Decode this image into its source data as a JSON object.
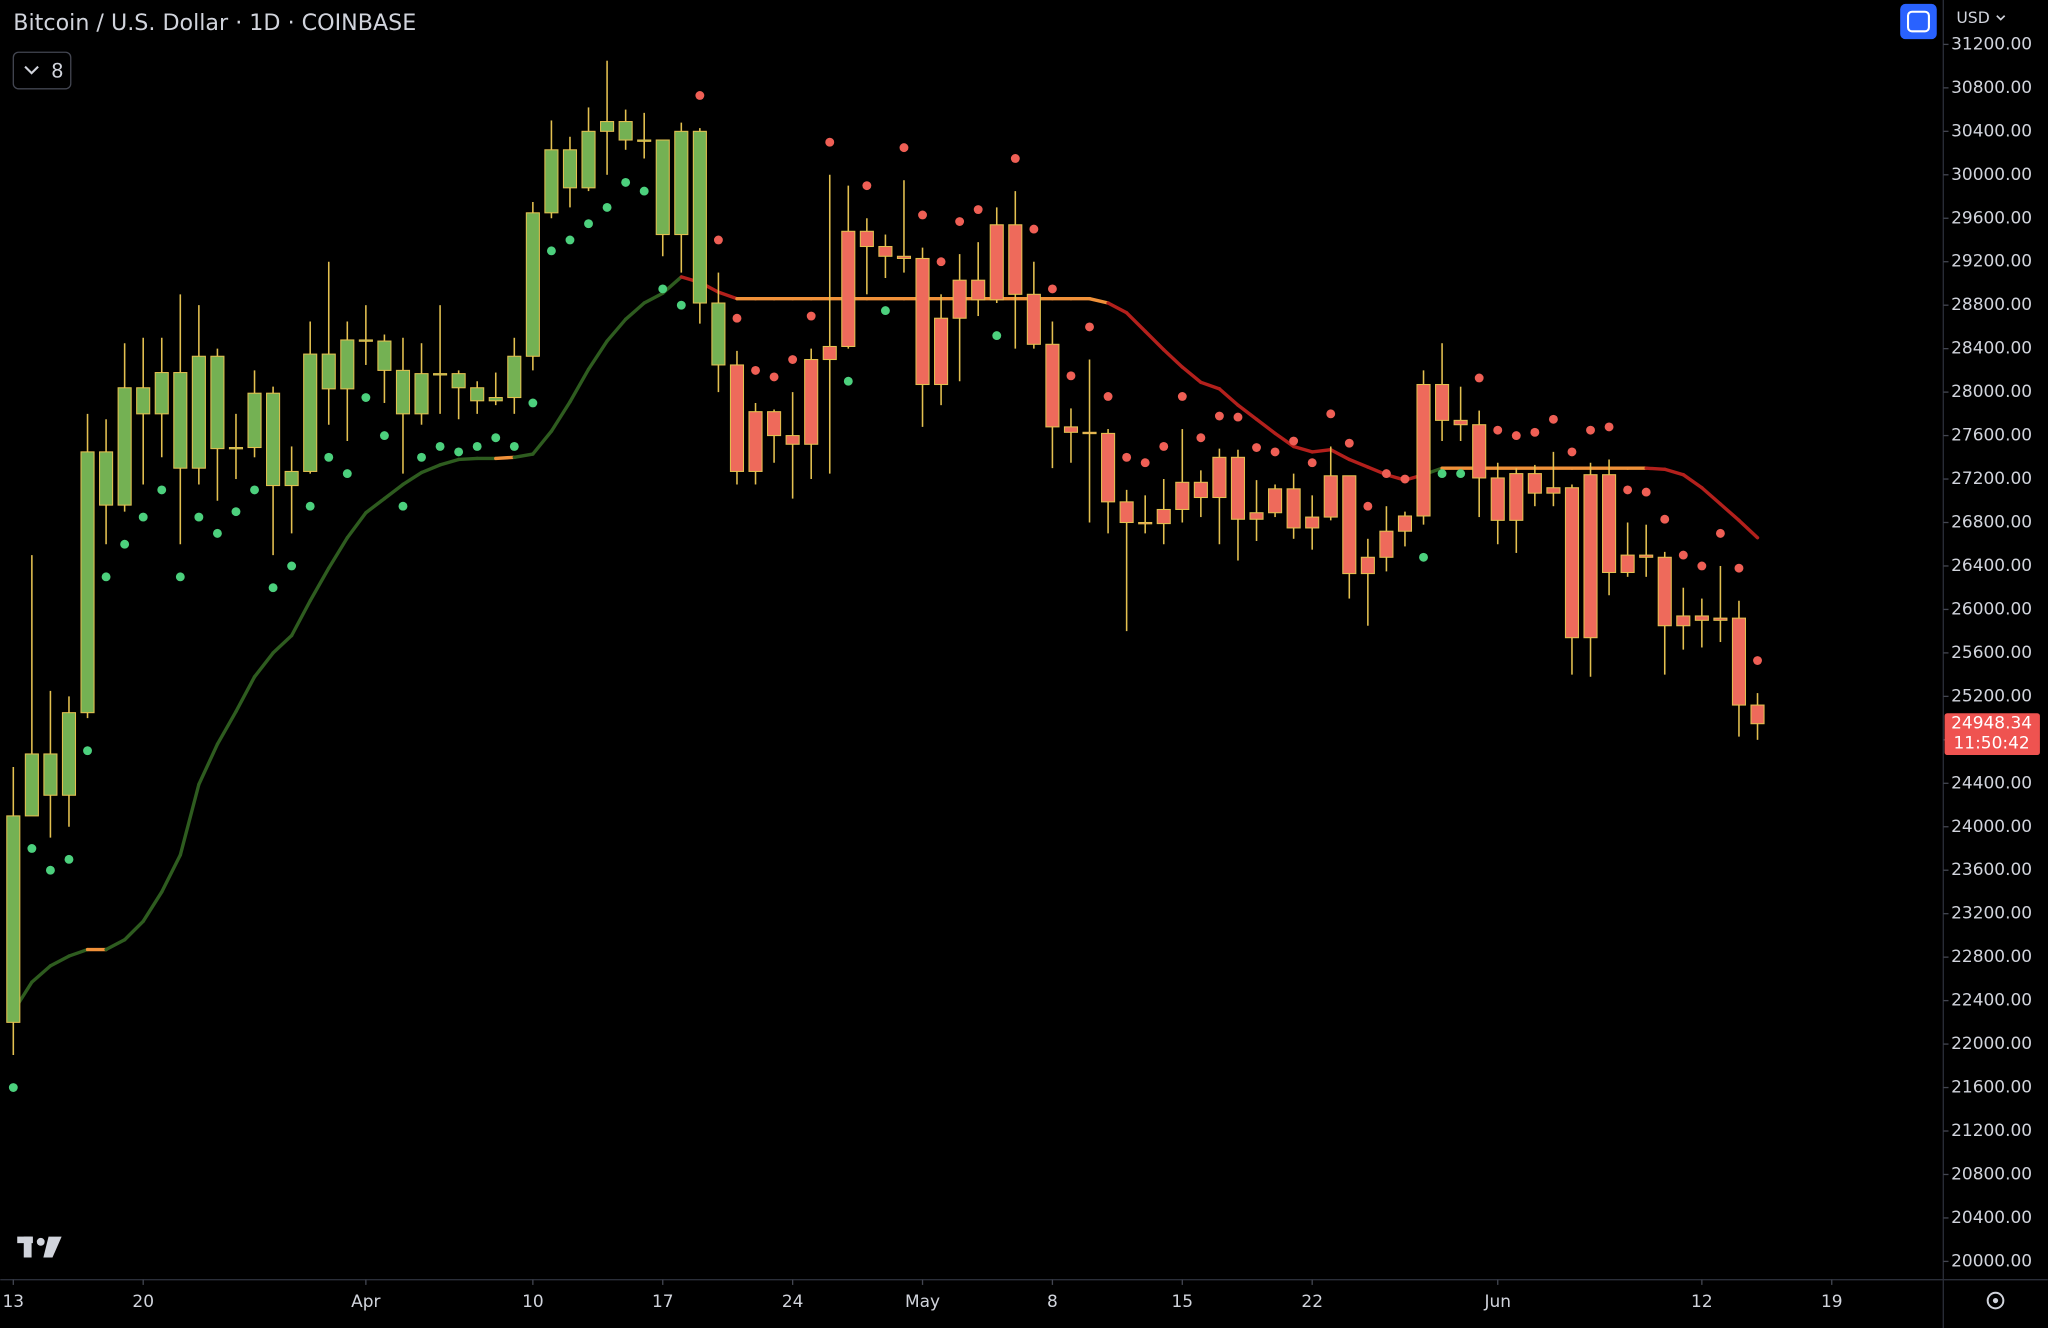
{
  "chart_data": {
    "type": "candlestick",
    "title": "Bitcoin / U.S. Dollar · 1D · COINBASE",
    "currency": "USD",
    "indicator_count": "8",
    "x": [
      "Mar 13",
      "Mar 14",
      "Mar 15",
      "Mar 16",
      "Mar 17",
      "Mar 18",
      "Mar 19",
      "Mar 20",
      "Mar 21",
      "Mar 22",
      "Mar 23",
      "Mar 24",
      "Mar 25",
      "Mar 26",
      "Mar 27",
      "Mar 28",
      "Mar 29",
      "Mar 30",
      "Mar 31",
      "Apr 1",
      "Apr 2",
      "Apr 3",
      "Apr 4",
      "Apr 5",
      "Apr 6",
      "Apr 7",
      "Apr 8",
      "Apr 9",
      "Apr 10",
      "Apr 11",
      "Apr 12",
      "Apr 13",
      "Apr 14",
      "Apr 15",
      "Apr 16",
      "Apr 17",
      "Apr 18",
      "Apr 19",
      "Apr 20",
      "Apr 21",
      "Apr 22",
      "Apr 23",
      "Apr 24",
      "Apr 25",
      "Apr 26",
      "Apr 27",
      "Apr 28",
      "Apr 29",
      "Apr 30",
      "May 1",
      "May 2",
      "May 3",
      "May 4",
      "May 5",
      "May 6",
      "May 7",
      "May 8",
      "May 9",
      "May 10",
      "May 11",
      "May 12",
      "May 13",
      "May 14",
      "May 15",
      "May 16",
      "May 17",
      "May 18",
      "May 19",
      "May 20",
      "May 21",
      "May 22",
      "May 23",
      "May 24",
      "May 25",
      "May 26",
      "May 27",
      "May 28",
      "May 29",
      "May 30",
      "May 31",
      "Jun 1",
      "Jun 2",
      "Jun 3",
      "Jun 4",
      "Jun 5",
      "Jun 6",
      "Jun 7",
      "Jun 8",
      "Jun 9",
      "Jun 10",
      "Jun 11",
      "Jun 12",
      "Jun 13",
      "Jun 14",
      "Jun 15"
    ],
    "open": [
      22200,
      24100,
      24670,
      24290,
      25050,
      27450,
      26960,
      28040,
      27800,
      28180,
      27300,
      28330,
      27480,
      27490,
      27990,
      27140,
      27270,
      28350,
      28030,
      28480,
      28470,
      28200,
      27800,
      28170,
      28170,
      28040,
      27920,
      27950,
      28330,
      29650,
      30230,
      29880,
      30400,
      30490,
      30320,
      30320,
      29450,
      30400,
      28820,
      28250,
      27270,
      27820,
      27600,
      27520,
      28300,
      28420,
      29480,
      29340,
      29250,
      29230,
      28070,
      28680,
      29030,
      28850,
      29540,
      28900,
      28440,
      27680,
      27630,
      27620,
      26990,
      26800,
      26790,
      26920,
      27170,
      27030,
      27400,
      26830,
      26890,
      27110,
      26750,
      26850,
      27230,
      26330,
      26480,
      26720,
      26860,
      28070,
      27740,
      27700,
      27210,
      26820,
      27250,
      27070,
      27120,
      25740,
      27240,
      26340,
      26500,
      26480,
      25850,
      25940,
      25900,
      25920,
      25120
    ],
    "high": [
      24550,
      26500,
      25250,
      25200,
      27800,
      27750,
      28450,
      28500,
      28500,
      28900,
      28800,
      28400,
      27800,
      28200,
      28050,
      27500,
      28650,
      29200,
      28650,
      28800,
      28530,
      28500,
      28450,
      28800,
      28200,
      28100,
      28180,
      28500,
      29750,
      30500,
      30350,
      30620,
      31050,
      30600,
      30570,
      30320,
      30480,
      30430,
      29100,
      28380,
      27900,
      27840,
      28000,
      28400,
      30000,
      29900,
      29600,
      29450,
      29950,
      29330,
      28900,
      29270,
      29380,
      29700,
      29850,
      29200,
      28650,
      27850,
      28300,
      27660,
      27100,
      27050,
      27200,
      27660,
      27280,
      27480,
      27470,
      27190,
      27150,
      27250,
      27050,
      27500,
      27230,
      26650,
      26950,
      26900,
      28200,
      28450,
      28050,
      27830,
      27350,
      27300,
      27330,
      27450,
      27150,
      27350,
      27380,
      26800,
      26780,
      26530,
      26200,
      26100,
      26400,
      26080,
      25230
    ],
    "low": [
      21900,
      24100,
      23900,
      24000,
      25000,
      26600,
      26900,
      27150,
      27400,
      26600,
      27150,
      27000,
      27200,
      27400,
      26500,
      26700,
      27250,
      27700,
      27550,
      28250,
      27900,
      27250,
      27700,
      27800,
      27750,
      27800,
      27880,
      27800,
      28200,
      29600,
      29700,
      29850,
      30000,
      30230,
      30150,
      29250,
      29100,
      28630,
      28000,
      27150,
      27150,
      27350,
      27020,
      27200,
      27250,
      28400,
      28900,
      29050,
      29100,
      27680,
      27880,
      28100,
      28700,
      28820,
      28400,
      28400,
      27300,
      27350,
      26800,
      26700,
      25800,
      26700,
      26600,
      26800,
      26850,
      26600,
      26450,
      26630,
      26850,
      26650,
      26550,
      26820,
      26100,
      25850,
      26350,
      26580,
      26780,
      27550,
      27550,
      26850,
      26600,
      26520,
      26950,
      26950,
      25400,
      25380,
      26130,
      26300,
      26300,
      25400,
      25630,
      25650,
      25700,
      24830,
      24800
    ],
    "close": [
      24100,
      24670,
      24290,
      25050,
      27450,
      26960,
      28040,
      27800,
      28180,
      27300,
      28330,
      27480,
      27490,
      27990,
      27140,
      27270,
      28350,
      28030,
      28480,
      28470,
      28200,
      27800,
      28170,
      28170,
      28040,
      27920,
      27950,
      28330,
      29650,
      30230,
      29880,
      30400,
      30490,
      30320,
      30320,
      29450,
      30400,
      28820,
      28250,
      27270,
      27820,
      27600,
      27520,
      28300,
      28420,
      29480,
      29340,
      29250,
      29230,
      28070,
      28680,
      29030,
      28850,
      29540,
      28900,
      28440,
      27680,
      27630,
      27620,
      26990,
      26800,
      26790,
      26920,
      27170,
      27030,
      27400,
      26830,
      26890,
      27110,
      26750,
      26850,
      27230,
      26330,
      26480,
      26720,
      26860,
      28070,
      27740,
      27700,
      27210,
      26820,
      27250,
      27070,
      27120,
      25740,
      27240,
      26340,
      26500,
      26480,
      25850,
      25940,
      25900,
      25920,
      25120,
      24948.34
    ],
    "candle_colors": [
      "#74b153",
      "#74b153",
      "#74b153",
      "#74b153",
      "#74b153",
      "#74b153",
      "#74b153",
      "#74b153",
      "#74b153",
      "#74b153",
      "#74b153",
      "#74b153",
      "#74b153",
      "#74b153",
      "#74b153",
      "#74b153",
      "#74b153",
      "#74b153",
      "#74b153",
      "#74b153",
      "#74b153",
      "#74b153",
      "#74b153",
      "#74b153",
      "#74b153",
      "#74b153",
      "#74b153",
      "#74b153",
      "#74b153",
      "#74b153",
      "#74b153",
      "#74b153",
      "#74b153",
      "#74b153",
      "#74b153",
      "#74b153",
      "#74b153",
      "#74b153",
      "#74b153",
      "#ee6a5b",
      "#ee6a5b",
      "#ee6a5b",
      "#ee6a5b",
      "#ee6a5b",
      "#ee6a5b",
      "#ee6a5b",
      "#ee6a5b",
      "#ee6a5b",
      "#ee6a5b",
      "#ee6a5b",
      "#ee6a5b",
      "#ee6a5b",
      "#ee6a5b",
      "#ee6a5b",
      "#ee6a5b",
      "#ee6a5b",
      "#ee6a5b",
      "#ee6a5b",
      "#ee6a5b",
      "#ee6a5b",
      "#ee6a5b",
      "#ee6a5b",
      "#ee6a5b",
      "#ee6a5b",
      "#ee6a5b",
      "#ee6a5b",
      "#ee6a5b",
      "#ee6a5b",
      "#ee6a5b",
      "#ee6a5b",
      "#ee6a5b",
      "#ee6a5b",
      "#ee6a5b",
      "#ee6a5b",
      "#ee6a5b",
      "#ee6a5b",
      "#ee6a5b",
      "#ee6a5b",
      "#ee6a5b",
      "#ee6a5b",
      "#ee6a5b",
      "#ee6a5b",
      "#ee6a5b",
      "#ee6a5b",
      "#ee6a5b",
      "#ee6a5b",
      "#ee6a5b",
      "#ee6a5b",
      "#ee6a5b",
      "#ee6a5b",
      "#ee6a5b",
      "#ee6a5b",
      "#ee6a5b",
      "#ee6a5b",
      "#ee6a5b"
    ],
    "wick_color": "#e3c050",
    "dots": {
      "values": [
        21600,
        23800,
        23600,
        23700,
        24700,
        26300,
        26600,
        26850,
        27100,
        26300,
        26850,
        26700,
        26900,
        27100,
        26200,
        26400,
        26950,
        27400,
        27250,
        27950,
        27600,
        26950,
        27400,
        27500,
        27450,
        27500,
        27580,
        27500,
        27900,
        29300,
        29400,
        29550,
        29700,
        29930,
        29850,
        28950,
        28800,
        30730,
        29400,
        28680,
        28200,
        28140,
        28300,
        28700,
        30300,
        28100,
        29900,
        28750,
        30250,
        29630,
        29200,
        29570,
        29680,
        28520,
        30150,
        29500,
        28950,
        28150,
        28600,
        27960,
        27400,
        27350,
        27500,
        27960,
        27580,
        27780,
        27770,
        27490,
        27450,
        27550,
        27350,
        27800,
        27530,
        26950,
        27250,
        27200,
        26480,
        27250,
        27250,
        28130,
        27650,
        27600,
        27630,
        27750,
        27450,
        27650,
        27680,
        27100,
        27080,
        26830,
        26500,
        26400,
        26700,
        26380,
        25530
      ],
      "below_color": "#4cd07d",
      "above_color": "#ef5f55"
    },
    "trend": {
      "values": [
        22300,
        22570,
        22720,
        22810,
        22870,
        22870,
        22960,
        23130,
        23400,
        23740,
        24390,
        24760,
        25060,
        25380,
        25600,
        25760,
        26080,
        26380,
        26660,
        26890,
        27020,
        27150,
        27260,
        27330,
        27380,
        27390,
        27390,
        27400,
        27430,
        27640,
        27910,
        28210,
        28470,
        28670,
        28820,
        28910,
        29060,
        29010,
        28920,
        28860,
        28860,
        28860,
        28860,
        28860,
        28860,
        28860,
        28860,
        28860,
        28860,
        28860,
        28860,
        28860,
        28860,
        28860,
        28860,
        28860,
        28860,
        28860,
        28860,
        28820,
        28730,
        28560,
        28390,
        28230,
        28090,
        28030,
        27880,
        27750,
        27620,
        27500,
        27450,
        27470,
        27380,
        27310,
        27240,
        27190,
        27240,
        27300,
        27300,
        27300,
        27300,
        27300,
        27300,
        27300,
        27300,
        27300,
        27300,
        27300,
        27300,
        27290,
        27240,
        27120,
        26970,
        26820,
        26660
      ],
      "colors": [
        "#2e5c1f",
        "#2e5c1f",
        "#2e5c1f",
        "#2e5c1f",
        "#f0913a",
        "#2e5c1f",
        "#2e5c1f",
        "#2e5c1f",
        "#2e5c1f",
        "#2e5c1f",
        "#2e5c1f",
        "#2e5c1f",
        "#2e5c1f",
        "#2e5c1f",
        "#2e5c1f",
        "#2e5c1f",
        "#2e5c1f",
        "#2e5c1f",
        "#2e5c1f",
        "#2e5c1f",
        "#2e5c1f",
        "#2e5c1f",
        "#2e5c1f",
        "#2e5c1f",
        "#2e5c1f",
        "#2e5c1f",
        "#f0913a",
        "#2e5c1f",
        "#2e5c1f",
        "#2e5c1f",
        "#2e5c1f",
        "#2e5c1f",
        "#2e5c1f",
        "#2e5c1f",
        "#2e5c1f",
        "#2e5c1f",
        "#b3201c",
        "#b3201c",
        "#b3201c",
        "#f0913a",
        "#f0913a",
        "#f0913a",
        "#f0913a",
        "#f0913a",
        "#f0913a",
        "#f0913a",
        "#f0913a",
        "#f0913a",
        "#f0913a",
        "#f0913a",
        "#f0913a",
        "#f0913a",
        "#f0913a",
        "#f0913a",
        "#f0913a",
        "#f0913a",
        "#f0913a",
        "#f0913a",
        "#f0913a",
        "#b3201c",
        "#b3201c",
        "#b3201c",
        "#b3201c",
        "#b3201c",
        "#b3201c",
        "#b3201c",
        "#b3201c",
        "#b3201c",
        "#b3201c",
        "#b3201c",
        "#b3201c",
        "#b3201c",
        "#b3201c",
        "#b3201c",
        "#b3201c",
        "#b3201c",
        "#2e5c1f",
        "#f0913a",
        "#f0913a",
        "#f0913a",
        "#f0913a",
        "#f0913a",
        "#f0913a",
        "#f0913a",
        "#f0913a",
        "#f0913a",
        "#f0913a",
        "#f0913a",
        "#b3201c",
        "#b3201c",
        "#b3201c",
        "#b3201c",
        "#b3201c",
        "#b3201c",
        "#b3201c"
      ]
    },
    "last_price": {
      "value": 24948.34,
      "label": "24948.34"
    },
    "countdown": "11:50:42",
    "ylim": [
      20000,
      31200
    ],
    "yticks": [
      {
        "value": 20000,
        "label": "20000.00"
      },
      {
        "value": 20400,
        "label": "20400.00"
      },
      {
        "value": 20800,
        "label": "20800.00"
      },
      {
        "value": 21200,
        "label": "21200.00"
      },
      {
        "value": 21600,
        "label": "21600.00"
      },
      {
        "value": 22000,
        "label": "22000.00"
      },
      {
        "value": 22400,
        "label": "22400.00"
      },
      {
        "value": 22800,
        "label": "22800.00"
      },
      {
        "value": 23200,
        "label": "23200.00"
      },
      {
        "value": 23600,
        "label": "23600.00"
      },
      {
        "value": 24000,
        "label": "24000.00"
      },
      {
        "value": 24400,
        "label": "24400.00"
      },
      {
        "value": 24800,
        "label": "24800.00"
      },
      {
        "value": 25200,
        "label": "25200.00"
      },
      {
        "value": 25600,
        "label": "25600.00"
      },
      {
        "value": 26000,
        "label": "26000.00"
      },
      {
        "value": 26400,
        "label": "26400.00"
      },
      {
        "value": 26800,
        "label": "26800.00"
      },
      {
        "value": 27200,
        "label": "27200.00"
      },
      {
        "value": 27600,
        "label": "27600.00"
      },
      {
        "value": 28000,
        "label": "28000.00"
      },
      {
        "value": 28400,
        "label": "28400.00"
      },
      {
        "value": 28800,
        "label": "28800.00"
      },
      {
        "value": 29200,
        "label": "29200.00"
      },
      {
        "value": 29600,
        "label": "29600.00"
      },
      {
        "value": 30000,
        "label": "30000.00"
      },
      {
        "value": 30400,
        "label": "30400.00"
      },
      {
        "value": 30800,
        "label": "30800.00"
      },
      {
        "value": 31200,
        "label": "31200.00"
      }
    ],
    "xticks": [
      {
        "value": "Mar 13",
        "label": "13"
      },
      {
        "value": "Mar 20",
        "label": "20"
      },
      {
        "value": "Apr 1",
        "label": "Apr"
      },
      {
        "value": "Apr 10",
        "label": "10"
      },
      {
        "value": "Apr 17",
        "label": "17"
      },
      {
        "value": "Apr 24",
        "label": "24"
      },
      {
        "value": "May 1",
        "label": "May"
      },
      {
        "value": "May 8",
        "label": "8"
      },
      {
        "value": "May 15",
        "label": "15"
      },
      {
        "value": "May 22",
        "label": "22"
      },
      {
        "value": "Jun 1",
        "label": "Jun"
      },
      {
        "value": "Jun 12",
        "label": "12"
      },
      {
        "value": "Jun 19",
        "label": "19"
      }
    ],
    "grid": false
  }
}
